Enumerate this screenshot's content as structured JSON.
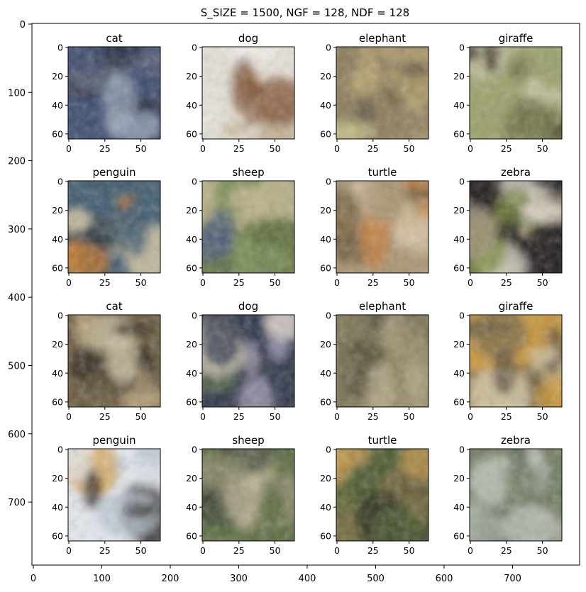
{
  "figure": {
    "title": "S_SIZE = 1500, NGF = 128, NDF = 128"
  },
  "outer_axes": {
    "x_ticks": [
      "0",
      "100",
      "200",
      "300",
      "400",
      "500",
      "600",
      "700"
    ],
    "y_ticks": [
      "0",
      "100",
      "200",
      "300",
      "400",
      "500",
      "600",
      "700"
    ]
  },
  "subplot_axes": {
    "x_ticks": [
      "0",
      "25",
      "50"
    ],
    "y_ticks": [
      "0",
      "20",
      "40",
      "60"
    ]
  },
  "chart_data": {
    "type": "image-grid",
    "title": "S_SIZE = 1500, NGF = 128, NDF = 128",
    "outer_xlim": [
      0,
      800
    ],
    "outer_ylim": [
      800,
      0
    ],
    "outer_x_ticks": [
      0,
      100,
      200,
      300,
      400,
      500,
      600,
      700
    ],
    "outer_y_ticks": [
      0,
      100,
      200,
      300,
      400,
      500,
      600,
      700
    ],
    "panel_image_size": [
      64,
      64
    ],
    "panel_x_ticks": [
      0,
      25,
      50
    ],
    "panel_y_ticks": [
      0,
      20,
      40,
      60
    ],
    "rows": 4,
    "cols": 4,
    "panels": [
      {
        "label": "cat",
        "palette": [
          "#3a4a6e",
          "#9aa6b8",
          "#1c2030",
          "#5e6678"
        ]
      },
      {
        "label": "dog",
        "palette": [
          "#e6e0d6",
          "#7a4a2a",
          "#c9b79a",
          "#f3efe8"
        ]
      },
      {
        "label": "elephant",
        "palette": [
          "#8a7a58",
          "#b8a66e",
          "#5a4e3a",
          "#c8c08a"
        ]
      },
      {
        "label": "giraffe",
        "palette": [
          "#9aa068",
          "#2c1e14",
          "#c8c6a4",
          "#6e7044"
        ]
      },
      {
        "label": "penguin",
        "palette": [
          "#3e5a6e",
          "#c87a2a",
          "#e8d4a8",
          "#2a3a44"
        ]
      },
      {
        "label": "sheep",
        "palette": [
          "#7a8e52",
          "#4a5a7a",
          "#c8b894",
          "#5e6e3a"
        ]
      },
      {
        "label": "turtle",
        "palette": [
          "#a89470",
          "#d4c2a0",
          "#6a5a3a",
          "#c87e3a"
        ]
      },
      {
        "label": "zebra",
        "palette": [
          "#1e1a18",
          "#e8e2d4",
          "#7a8a3a",
          "#a89a80"
        ]
      },
      {
        "label": "cat",
        "palette": [
          "#6a5a3e",
          "#2a2218",
          "#b8a27a",
          "#d0c4a4"
        ]
      },
      {
        "label": "dog",
        "palette": [
          "#2c3448",
          "#a8a0b8",
          "#5a6e48",
          "#d8ccc0"
        ]
      },
      {
        "label": "elephant",
        "palette": [
          "#7a7452",
          "#b8aa8a",
          "#4e4a34",
          "#9a8e6a"
        ]
      },
      {
        "label": "giraffe",
        "palette": [
          "#c8963a",
          "#5a4e3a",
          "#e0d4b4",
          "#7a6a44"
        ]
      },
      {
        "label": "penguin",
        "palette": [
          "#e4e8ee",
          "#2a2420",
          "#d8aa5a",
          "#b8c4d2"
        ]
      },
      {
        "label": "sheep",
        "palette": [
          "#5a6a3e",
          "#8e8a6a",
          "#c4b89a",
          "#3a4430"
        ]
      },
      {
        "label": "turtle",
        "palette": [
          "#4a5a2e",
          "#c89a4a",
          "#2a2a1e",
          "#7a6a3e"
        ]
      },
      {
        "label": "zebra",
        "palette": [
          "#6e7a5e",
          "#a8b0a4",
          "#4e5a44",
          "#c8ccc4"
        ]
      }
    ]
  }
}
